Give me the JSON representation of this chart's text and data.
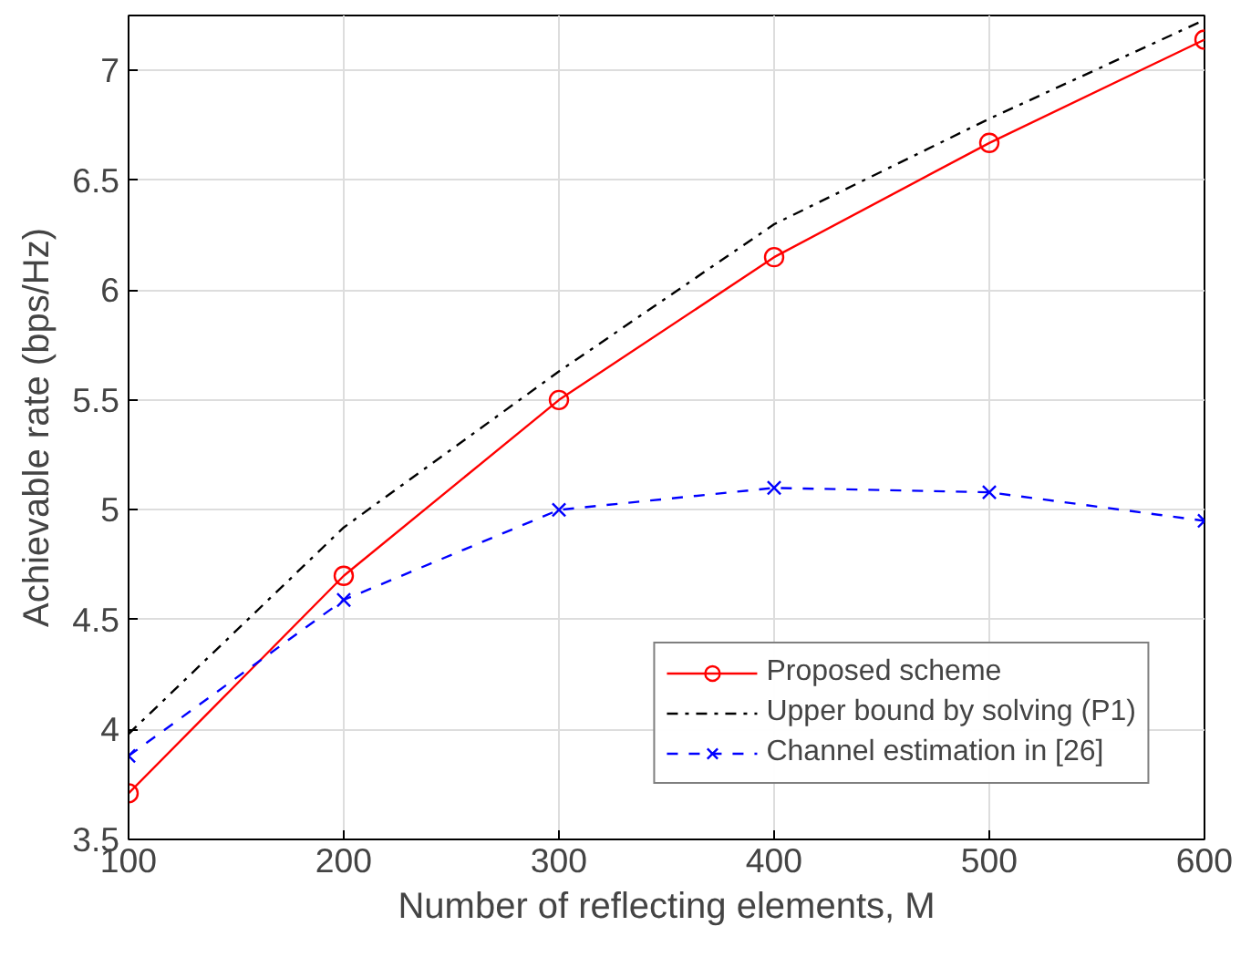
{
  "chart_data": {
    "type": "line",
    "xlabel": "Number of reflecting elements, M",
    "ylabel": "Achievable rate (bps/Hz)",
    "x": [
      100,
      200,
      300,
      400,
      500,
      600
    ],
    "series": [
      {
        "name": "Proposed scheme",
        "color": "#ff0000",
        "marker": "circle",
        "line_style": "solid",
        "values": [
          3.71,
          4.7,
          5.5,
          6.15,
          6.67,
          7.14
        ]
      },
      {
        "name": "Upper bound by solving (P1)",
        "color": "#000000",
        "marker": "none",
        "line_style": "dashdot",
        "values": [
          3.98,
          4.92,
          5.63,
          6.3,
          6.78,
          7.23
        ]
      },
      {
        "name": "Channel estimation in [26]",
        "color": "#0000ff",
        "marker": "cross",
        "line_style": "dashed",
        "values": [
          3.88,
          4.59,
          5.0,
          5.1,
          5.08,
          4.95
        ]
      }
    ],
    "xlim": [
      100,
      600
    ],
    "xticks": [
      100,
      200,
      300,
      400,
      500,
      600
    ],
    "ylim": [
      3.5,
      7.25
    ],
    "yticks": [
      3.5,
      4,
      4.5,
      5,
      5.5,
      6,
      6.5,
      7
    ],
    "grid": true,
    "legend": "bottom right"
  }
}
